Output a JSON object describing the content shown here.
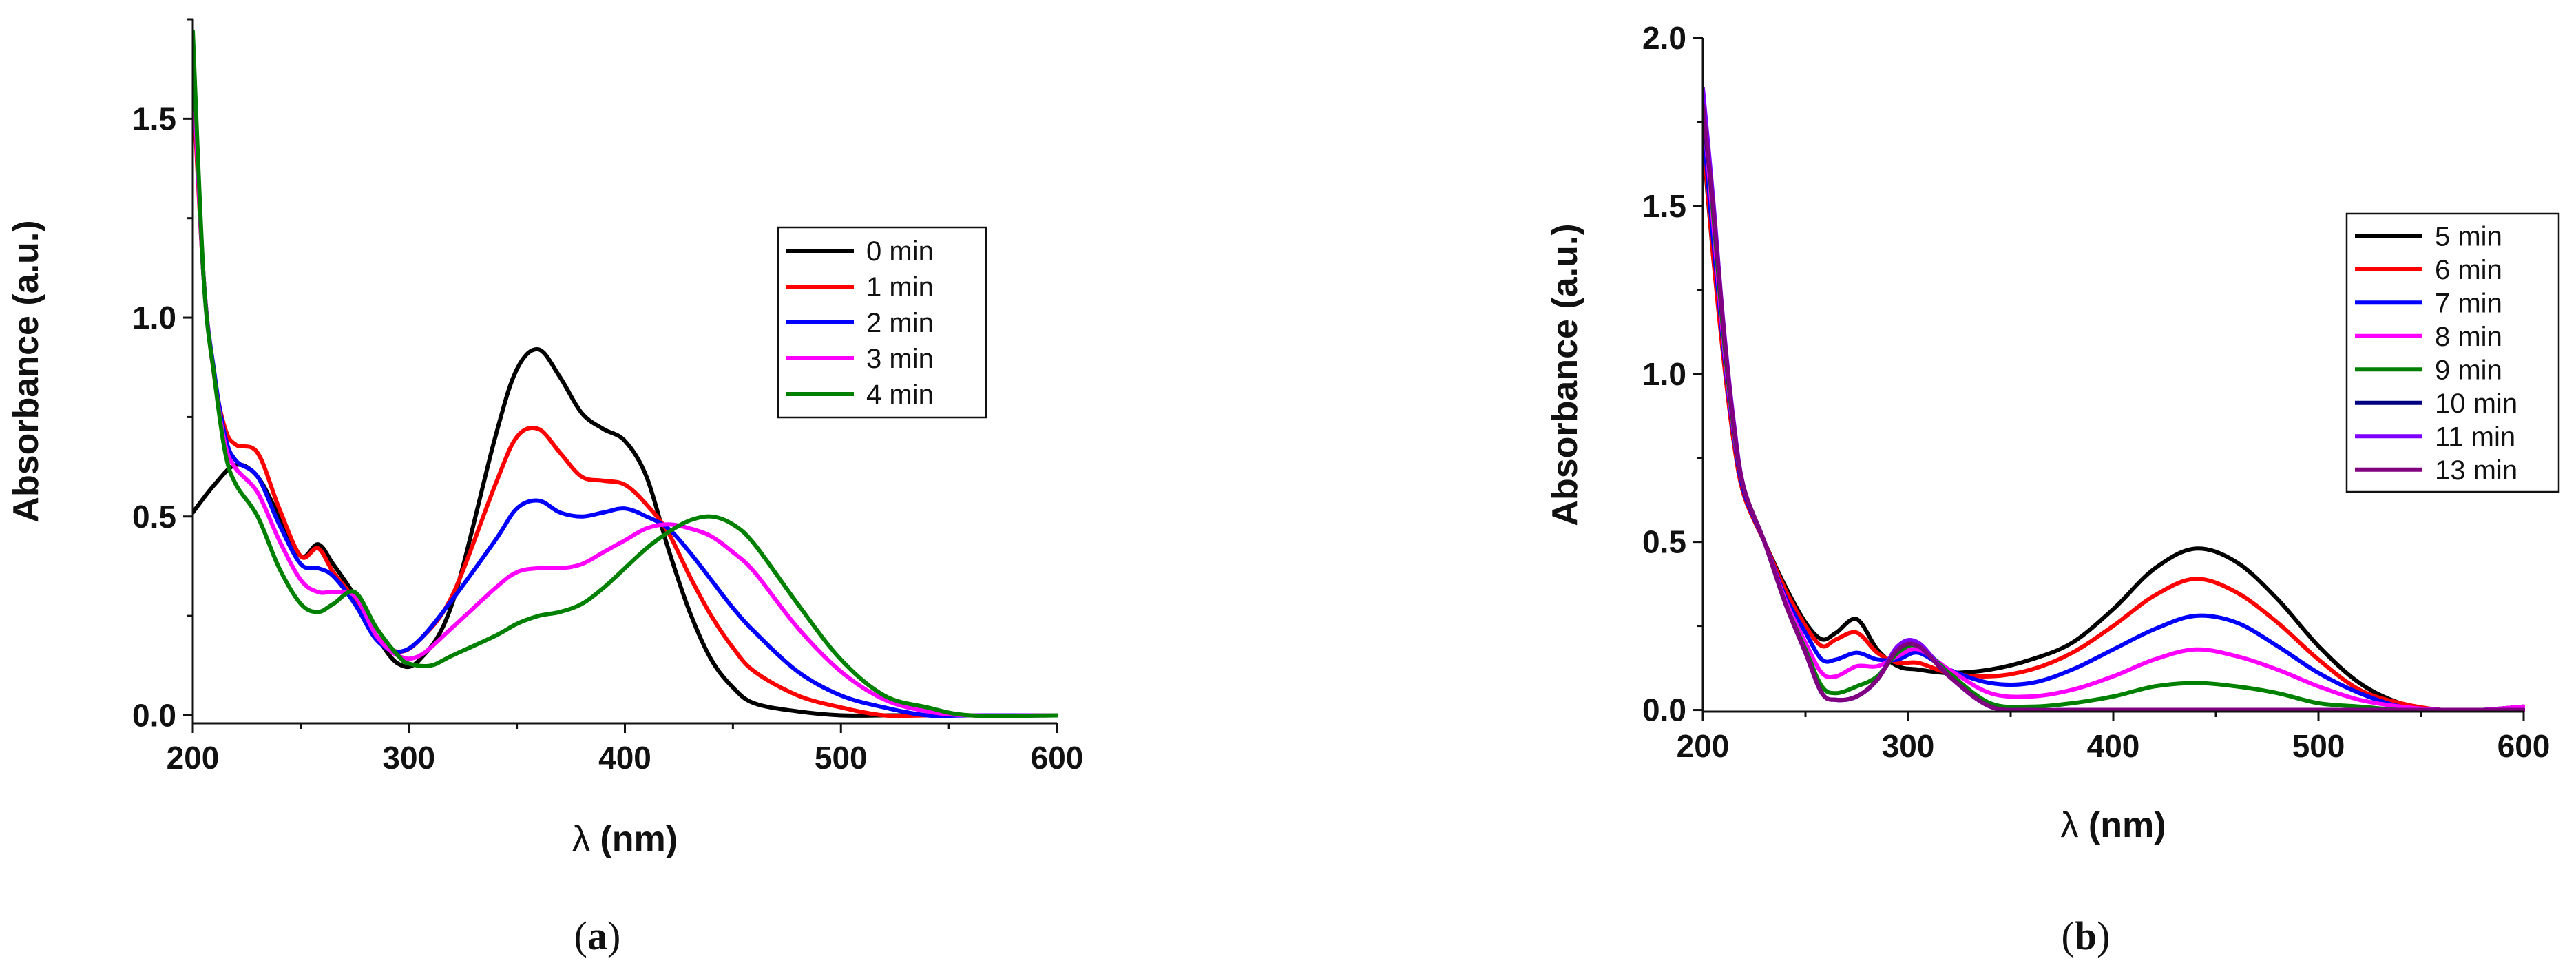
{
  "chart_data": [
    {
      "id": "a",
      "type": "line",
      "caption": {
        "open": "(",
        "letter": "a",
        "close": ")"
      },
      "xlabel": {
        "symbol": "λ",
        "unit": " (nm)"
      },
      "ylabel": "Absorbance (a.u.)",
      "xlim": [
        200,
        600
      ],
      "ylim": [
        -0.02,
        1.75
      ],
      "xticks": [
        200,
        300,
        400,
        500,
        600
      ],
      "xtick_labels": [
        "200",
        "300",
        "400",
        "500",
        "600"
      ],
      "yticks": [
        0.0,
        0.5,
        1.0,
        1.5
      ],
      "ytick_labels": [
        "0.0",
        "0.5",
        "1.0",
        "1.5"
      ],
      "legend_position": "top-right",
      "series": [
        {
          "name": "0 min",
          "color": "#000000",
          "x": [
            200,
            210,
            220,
            230,
            240,
            250,
            258,
            265,
            275,
            285,
            295,
            305,
            320,
            340,
            350,
            360,
            370,
            380,
            390,
            400,
            410,
            420,
            430,
            440,
            450,
            460,
            480,
            500,
            520,
            540,
            560,
            600
          ],
          "y": [
            0.51,
            0.58,
            0.63,
            0.6,
            0.5,
            0.4,
            0.43,
            0.38,
            0.3,
            0.2,
            0.13,
            0.14,
            0.28,
            0.7,
            0.87,
            0.92,
            0.85,
            0.76,
            0.72,
            0.69,
            0.6,
            0.42,
            0.26,
            0.14,
            0.07,
            0.03,
            0.01,
            0.0,
            0.0,
            0.0,
            0.0,
            0.0
          ]
        },
        {
          "name": "1 min",
          "color": "#ff0000",
          "x": [
            200,
            205,
            210,
            215,
            220,
            230,
            240,
            250,
            258,
            265,
            275,
            285,
            295,
            305,
            320,
            340,
            350,
            360,
            370,
            380,
            390,
            400,
            410,
            420,
            430,
            440,
            450,
            460,
            480,
            500,
            520,
            540,
            560,
            600
          ],
          "y": [
            1.6,
            1.1,
            0.85,
            0.72,
            0.68,
            0.66,
            0.52,
            0.4,
            0.42,
            0.36,
            0.29,
            0.2,
            0.16,
            0.19,
            0.3,
            0.58,
            0.7,
            0.72,
            0.66,
            0.6,
            0.59,
            0.58,
            0.53,
            0.46,
            0.35,
            0.25,
            0.17,
            0.11,
            0.05,
            0.02,
            0.0,
            0.0,
            0.0,
            0.0
          ]
        },
        {
          "name": "2 min",
          "color": "#0000ff",
          "x": [
            200,
            205,
            210,
            215,
            220,
            230,
            240,
            250,
            258,
            265,
            275,
            285,
            295,
            305,
            320,
            340,
            350,
            360,
            370,
            380,
            390,
            400,
            410,
            420,
            430,
            440,
            450,
            460,
            480,
            500,
            520,
            540,
            560,
            600
          ],
          "y": [
            1.65,
            1.1,
            0.86,
            0.7,
            0.64,
            0.6,
            0.48,
            0.38,
            0.37,
            0.35,
            0.28,
            0.19,
            0.16,
            0.19,
            0.29,
            0.44,
            0.52,
            0.54,
            0.51,
            0.5,
            0.51,
            0.52,
            0.5,
            0.47,
            0.41,
            0.34,
            0.27,
            0.21,
            0.11,
            0.05,
            0.02,
            0.0,
            0.0,
            0.0
          ]
        },
        {
          "name": "3 min",
          "color": "#ff00ff",
          "x": [
            200,
            205,
            210,
            215,
            220,
            230,
            240,
            250,
            258,
            265,
            275,
            285,
            295,
            305,
            320,
            340,
            350,
            360,
            370,
            380,
            390,
            400,
            410,
            420,
            430,
            440,
            450,
            460,
            480,
            500,
            520,
            540,
            560,
            600
          ],
          "y": [
            1.65,
            1.1,
            0.85,
            0.68,
            0.62,
            0.56,
            0.44,
            0.34,
            0.31,
            0.31,
            0.3,
            0.2,
            0.15,
            0.15,
            0.22,
            0.32,
            0.36,
            0.37,
            0.37,
            0.38,
            0.41,
            0.44,
            0.47,
            0.48,
            0.47,
            0.45,
            0.41,
            0.36,
            0.22,
            0.11,
            0.04,
            0.01,
            0.0,
            0.0
          ]
        },
        {
          "name": "4 min",
          "color": "#008000",
          "x": [
            200,
            205,
            210,
            215,
            220,
            230,
            240,
            250,
            258,
            265,
            275,
            285,
            295,
            300,
            310,
            320,
            340,
            350,
            360,
            370,
            380,
            390,
            400,
            410,
            420,
            430,
            440,
            450,
            460,
            480,
            500,
            520,
            540,
            560,
            600
          ],
          "y": [
            1.72,
            1.1,
            0.85,
            0.66,
            0.58,
            0.5,
            0.37,
            0.28,
            0.26,
            0.28,
            0.31,
            0.22,
            0.15,
            0.13,
            0.125,
            0.15,
            0.2,
            0.23,
            0.25,
            0.26,
            0.28,
            0.32,
            0.37,
            0.42,
            0.46,
            0.49,
            0.5,
            0.48,
            0.43,
            0.28,
            0.14,
            0.05,
            0.02,
            0.0,
            0.0
          ]
        }
      ]
    },
    {
      "id": "b",
      "type": "line",
      "caption": {
        "open": "(",
        "letter": "b",
        "close": ")"
      },
      "xlabel": {
        "symbol": "λ",
        "unit": " (nm)"
      },
      "ylabel": "Absorbance (a.u.)",
      "xlim": [
        200,
        600
      ],
      "ylim": [
        -0.005,
        2.0
      ],
      "xticks": [
        200,
        300,
        400,
        500,
        600
      ],
      "xtick_labels": [
        "200",
        "300",
        "400",
        "500",
        "600"
      ],
      "yticks": [
        0.0,
        0.5,
        1.0,
        1.5,
        2.0
      ],
      "ytick_labels": [
        "0.0",
        "0.5",
        "1.0",
        "1.5",
        "2.0"
      ],
      "legend_position": "right",
      "series": [
        {
          "name": "5 min",
          "color": "#000000",
          "x": [
            200,
            205,
            210,
            215,
            220,
            230,
            240,
            250,
            258,
            265,
            275,
            285,
            295,
            305,
            320,
            340,
            360,
            380,
            400,
            420,
            440,
            460,
            480,
            500,
            520,
            540,
            560,
            580,
            600
          ],
          "y": [
            1.7,
            1.35,
            1.05,
            0.8,
            0.64,
            0.5,
            0.37,
            0.26,
            0.21,
            0.23,
            0.27,
            0.18,
            0.13,
            0.12,
            0.11,
            0.12,
            0.15,
            0.2,
            0.3,
            0.42,
            0.48,
            0.44,
            0.33,
            0.19,
            0.08,
            0.02,
            0.0,
            0.0,
            0.01
          ]
        },
        {
          "name": "6 min",
          "color": "#ff0000",
          "x": [
            200,
            205,
            210,
            215,
            220,
            230,
            240,
            250,
            258,
            265,
            275,
            285,
            295,
            305,
            320,
            340,
            360,
            380,
            400,
            420,
            440,
            460,
            480,
            500,
            520,
            540,
            560,
            580,
            600
          ],
          "y": [
            1.72,
            1.35,
            1.05,
            0.8,
            0.64,
            0.5,
            0.36,
            0.25,
            0.19,
            0.21,
            0.23,
            0.17,
            0.14,
            0.14,
            0.11,
            0.1,
            0.12,
            0.17,
            0.25,
            0.34,
            0.39,
            0.35,
            0.26,
            0.15,
            0.06,
            0.02,
            0.0,
            0.0,
            0.01
          ]
        },
        {
          "name": "7 min",
          "color": "#0000ff",
          "x": [
            200,
            205,
            210,
            215,
            220,
            230,
            240,
            250,
            258,
            265,
            275,
            285,
            295,
            305,
            320,
            340,
            360,
            380,
            400,
            420,
            440,
            460,
            480,
            500,
            520,
            540,
            560,
            580,
            600
          ],
          "y": [
            1.75,
            1.4,
            1.08,
            0.82,
            0.65,
            0.5,
            0.34,
            0.23,
            0.15,
            0.15,
            0.17,
            0.15,
            0.15,
            0.17,
            0.12,
            0.08,
            0.08,
            0.12,
            0.18,
            0.24,
            0.28,
            0.26,
            0.19,
            0.11,
            0.05,
            0.01,
            0.0,
            0.0,
            0.01
          ]
        },
        {
          "name": "8 min",
          "color": "#ff00ff",
          "x": [
            200,
            205,
            210,
            215,
            220,
            230,
            240,
            250,
            258,
            265,
            275,
            285,
            295,
            305,
            320,
            340,
            360,
            380,
            400,
            420,
            440,
            460,
            480,
            500,
            520,
            540,
            560,
            580,
            600
          ],
          "y": [
            1.8,
            1.45,
            1.1,
            0.83,
            0.66,
            0.5,
            0.33,
            0.2,
            0.11,
            0.1,
            0.13,
            0.13,
            0.16,
            0.18,
            0.12,
            0.05,
            0.04,
            0.06,
            0.1,
            0.15,
            0.18,
            0.16,
            0.12,
            0.07,
            0.03,
            0.01,
            0.0,
            0.0,
            0.01
          ]
        },
        {
          "name": "9 min",
          "color": "#008000",
          "x": [
            200,
            205,
            210,
            215,
            220,
            230,
            240,
            250,
            258,
            265,
            275,
            285,
            295,
            305,
            320,
            340,
            360,
            380,
            400,
            420,
            440,
            460,
            480,
            500,
            520,
            540,
            560,
            580,
            600
          ],
          "y": [
            1.82,
            1.48,
            1.12,
            0.84,
            0.66,
            0.5,
            0.32,
            0.18,
            0.07,
            0.05,
            0.07,
            0.1,
            0.17,
            0.19,
            0.11,
            0.02,
            0.01,
            0.02,
            0.04,
            0.07,
            0.08,
            0.07,
            0.05,
            0.02,
            0.01,
            0.0,
            0.0,
            0.0,
            0.0
          ]
        },
        {
          "name": "10 min",
          "color": "#000080",
          "x": [
            200,
            205,
            210,
            215,
            220,
            230,
            240,
            250,
            258,
            265,
            275,
            285,
            295,
            305,
            320,
            340,
            360,
            380,
            400,
            420,
            440,
            460,
            480,
            500,
            520,
            540,
            560,
            580,
            600
          ],
          "y": [
            1.78,
            1.5,
            1.14,
            0.85,
            0.66,
            0.5,
            0.32,
            0.17,
            0.05,
            0.03,
            0.04,
            0.09,
            0.18,
            0.19,
            0.1,
            0.01,
            0.0,
            0.0,
            0.0,
            0.0,
            0.0,
            0.0,
            0.0,
            0.0,
            0.0,
            0.0,
            0.0,
            0.0,
            0.0
          ]
        },
        {
          "name": "11 min",
          "color": "#8000ff",
          "x": [
            200,
            205,
            210,
            215,
            220,
            230,
            240,
            250,
            258,
            265,
            275,
            285,
            295,
            305,
            320,
            340,
            360,
            380,
            400,
            420,
            440,
            460,
            480,
            500,
            520,
            540,
            560,
            580,
            600
          ],
          "y": [
            1.85,
            1.52,
            1.15,
            0.86,
            0.66,
            0.5,
            0.32,
            0.17,
            0.05,
            0.03,
            0.04,
            0.09,
            0.19,
            0.2,
            0.1,
            0.01,
            0.0,
            0.0,
            0.0,
            0.0,
            0.0,
            0.0,
            0.0,
            0.0,
            0.0,
            0.0,
            0.0,
            0.0,
            0.0
          ]
        },
        {
          "name": "13 min",
          "color": "#800080",
          "x": [
            200,
            205,
            210,
            215,
            220,
            230,
            240,
            250,
            258,
            265,
            275,
            285,
            295,
            305,
            320,
            340,
            360,
            380,
            400,
            420,
            440,
            460,
            480,
            500,
            520,
            540,
            560,
            580,
            600
          ],
          "y": [
            1.8,
            1.5,
            1.14,
            0.85,
            0.66,
            0.5,
            0.32,
            0.17,
            0.05,
            0.03,
            0.04,
            0.09,
            0.18,
            0.19,
            0.1,
            0.01,
            0.0,
            0.0,
            0.0,
            0.0,
            0.0,
            0.0,
            0.0,
            0.0,
            0.0,
            0.0,
            0.0,
            0.0,
            0.0
          ]
        }
      ]
    }
  ]
}
